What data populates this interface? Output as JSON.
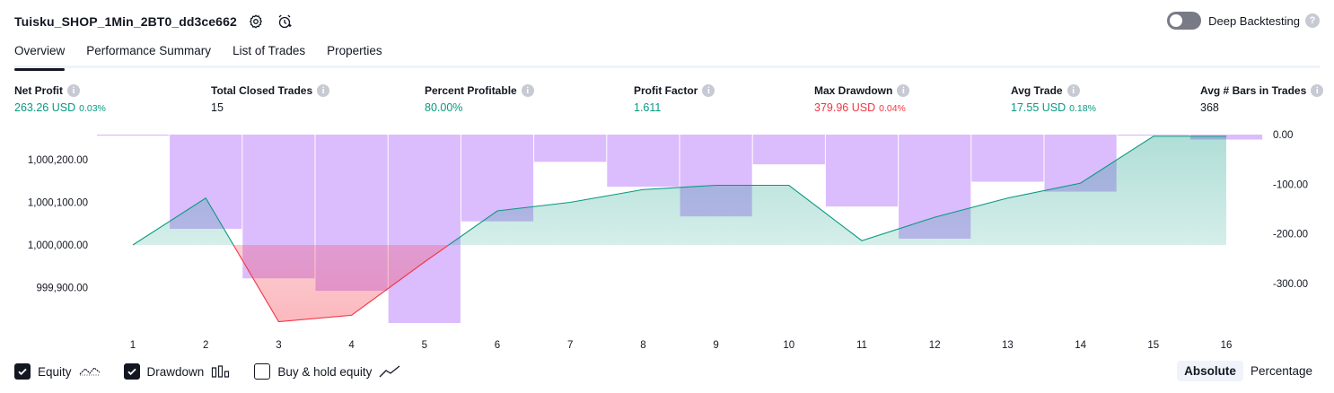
{
  "header": {
    "title": "Tuisku_SHOP_1Min_2BT0_dd3ce662",
    "settings_icon": "gear-icon",
    "alert_icon": "alarm-clock-icon",
    "deep_backtesting_label": "Deep Backtesting",
    "deep_backtesting_enabled": false
  },
  "tabs": [
    {
      "label": "Overview",
      "active": true
    },
    {
      "label": "Performance Summary",
      "active": false
    },
    {
      "label": "List of Trades",
      "active": false
    },
    {
      "label": "Properties",
      "active": false
    }
  ],
  "metrics": [
    {
      "label": "Net Profit",
      "value": "263.26 USD",
      "pct": "0.03%",
      "color": "#089981"
    },
    {
      "label": "Total Closed Trades",
      "value": "15",
      "pct": "",
      "color": "#131722"
    },
    {
      "label": "Percent Profitable",
      "value": "80.00%",
      "pct": "",
      "color": "#089981"
    },
    {
      "label": "Profit Factor",
      "value": "1.611",
      "pct": "",
      "color": "#089981"
    },
    {
      "label": "Max Drawdown",
      "value": "379.96 USD",
      "pct": "0.04%",
      "color": "#f23645"
    },
    {
      "label": "Avg Trade",
      "value": "17.55 USD",
      "pct": "0.18%",
      "color": "#089981"
    },
    {
      "label": "Avg # Bars in Trades",
      "value": "368",
      "pct": "",
      "color": "#131722"
    }
  ],
  "chart_data": {
    "type": "bar",
    "x": [
      1,
      2,
      3,
      4,
      5,
      6,
      7,
      8,
      9,
      10,
      11,
      12,
      13,
      14,
      15,
      16
    ],
    "left_axis": {
      "ticks": [
        "1,000,200.00",
        "1,000,100.00",
        "1,000,000.00",
        "999,900.00"
      ],
      "tick_values": [
        1000200,
        1000100,
        1000000,
        999900
      ],
      "range": [
        999820,
        1000260
      ]
    },
    "right_axis": {
      "ticks": [
        "0.00",
        "-100.00",
        "-200.00",
        "-300.00"
      ],
      "tick_values": [
        0,
        -100,
        -200,
        -300
      ],
      "range": [
        -380,
        0
      ]
    },
    "series": [
      {
        "name": "Equity",
        "axis": "left",
        "values": [
          1000000,
          1000110,
          999820,
          999835,
          999960,
          1000080,
          1000100,
          1000130,
          1000140,
          1000140,
          1000010,
          1000065,
          1000110,
          1000145,
          1000255,
          1000255
        ],
        "baseline": 1000000,
        "color_up": "#089981",
        "color_down": "#f23645"
      },
      {
        "name": "Drawdown",
        "axis": "right",
        "values": [
          -1,
          -190,
          -290,
          -315,
          -380,
          -175,
          -55,
          -105,
          -165,
          -60,
          -145,
          -210,
          -95,
          -115,
          -1,
          -10
        ],
        "color": "#d1a9fd"
      }
    ]
  },
  "footer": {
    "legend": [
      {
        "label": "Equity",
        "checked": true,
        "glyph": "equity-line-icon"
      },
      {
        "label": "Drawdown",
        "checked": true,
        "glyph": "drawdown-bars-icon"
      },
      {
        "label": "Buy & hold equity",
        "checked": false,
        "glyph": "buy-hold-line-icon"
      }
    ],
    "modes": [
      {
        "label": "Absolute",
        "active": true
      },
      {
        "label": "Percentage",
        "active": false
      }
    ]
  }
}
